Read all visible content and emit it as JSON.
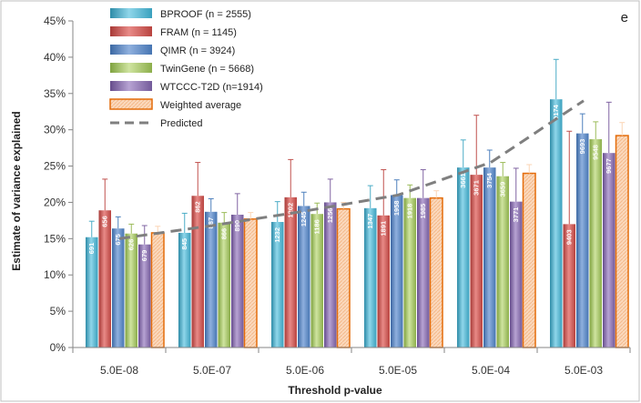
{
  "chart_data": {
    "type": "bar",
    "panel_label": "e",
    "title": "",
    "xlabel": "Threshold p-value",
    "ylabel": "Estimate of variance explained",
    "ylim": [
      0,
      45
    ],
    "yticks": [
      "0%",
      "5%",
      "10%",
      "15%",
      "20%",
      "25%",
      "30%",
      "35%",
      "40%",
      "45%"
    ],
    "categories": [
      "5.0E-08",
      "5.0E-07",
      "5.0E-06",
      "5.0E-05",
      "5.0E-04",
      "5.0E-03"
    ],
    "series": [
      {
        "name": "BPROOF (n = 2555)",
        "color": "#4bacc6",
        "values": [
          15.2,
          15.8,
          17.3,
          19.2,
          24.8,
          34.2
        ],
        "errors": [
          2.2,
          2.7,
          2.8,
          3.1,
          3.8,
          5.5
        ],
        "labels": [
          "691",
          "845",
          "1232",
          "1347",
          "3661",
          "9174"
        ]
      },
      {
        "name": "FRAM (n = 1145)",
        "color": "#c0504d",
        "values": [
          18.9,
          20.9,
          20.7,
          18.2,
          23.8,
          17.0
        ],
        "errors": [
          4.3,
          4.6,
          5.2,
          6.3,
          8.2,
          12.8
        ],
        "labels": [
          "656",
          "862",
          "1202",
          "1891",
          "3671",
          "9403"
        ]
      },
      {
        "name": "QIMR (n = 3924)",
        "color": "#4f81bd",
        "values": [
          16.4,
          18.7,
          19.5,
          21.0,
          24.8,
          29.5
        ],
        "errors": [
          1.6,
          1.8,
          1.9,
          2.1,
          2.4,
          2.7
        ],
        "labels": [
          "675",
          "887",
          "1245",
          "1958",
          "3754",
          "9693"
        ]
      },
      {
        "name": "TwinGene (n = 5668)",
        "color": "#9bbb59",
        "values": [
          15.7,
          17.2,
          18.4,
          20.6,
          23.6,
          28.7
        ],
        "errors": [
          1.3,
          1.4,
          1.5,
          1.8,
          1.9,
          2.4
        ],
        "labels": [
          "626",
          "866",
          "1186",
          "1918",
          "3659",
          "9548"
        ]
      },
      {
        "name": "WTCCC-T2D (n=1914)",
        "color": "#8064a2",
        "values": [
          14.2,
          18.3,
          20.0,
          20.6,
          20.1,
          26.8
        ],
        "errors": [
          2.6,
          2.9,
          3.2,
          3.9,
          4.6,
          7.0
        ],
        "labels": [
          "679",
          "890",
          "1256",
          "1985",
          "3771",
          "9677"
        ]
      },
      {
        "name": "Weighted average",
        "color": "#fbd5b5",
        "border": "#e46c0a",
        "values": [
          15.8,
          17.7,
          19.1,
          20.6,
          24.0,
          29.2
        ],
        "errors": [
          0.9,
          0.9,
          0.9,
          1.0,
          1.2,
          1.8
        ],
        "labels": [
          "",
          "",
          "",
          "",
          "",
          ""
        ]
      }
    ],
    "predicted": {
      "name": "Predicted",
      "color": "#7f7f7f",
      "values": [
        15.0,
        16.8,
        18.8,
        21.0,
        25.5,
        34.0
      ]
    },
    "legend_position": "top-left inside plot"
  }
}
